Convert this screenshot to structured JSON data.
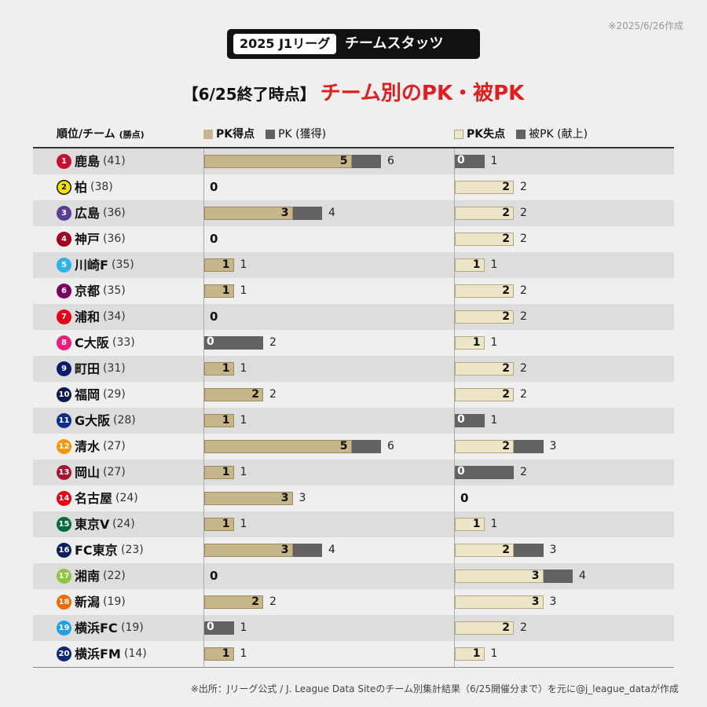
{
  "created": "※2025/6/26作成",
  "badge": {
    "year": "2025 J1リーグ",
    "title": "チームスタッツ"
  },
  "headline": {
    "prefix": "【6/25終了時点】",
    "main": "チーム別のPK・被PK"
  },
  "headers": {
    "team": "順位/チーム",
    "team_sub": "(勝点)",
    "pk_scored": "PK得点",
    "pk_won": "PK (獲得)",
    "pk_conceded": "PK失点",
    "pk_given": "被PK (献上)"
  },
  "colors": {
    "pk_scored": "#c7b68a",
    "pk_total": "#626262",
    "pk_conceded": "#ede5c8",
    "title_red": "#e01e1e"
  },
  "chart_data": {
    "type": "bar",
    "orientation": "horizontal",
    "categories": [
      "鹿島",
      "柏",
      "広島",
      "神戸",
      "川崎F",
      "京都",
      "浦和",
      "C大阪",
      "町田",
      "福岡",
      "G大阪",
      "清水",
      "岡山",
      "名古屋",
      "東京V",
      "FC東京",
      "湘南",
      "新潟",
      "横浜FC",
      "横浜FM"
    ],
    "panels": [
      {
        "series": [
          {
            "name": "PK得点",
            "values": [
              5,
              0,
              3,
              0,
              1,
              1,
              0,
              0,
              1,
              2,
              1,
              5,
              1,
              3,
              1,
              3,
              0,
              2,
              0,
              1
            ]
          },
          {
            "name": "PK (獲得)",
            "values": [
              6,
              0,
              4,
              0,
              1,
              1,
              0,
              2,
              1,
              2,
              1,
              6,
              1,
              3,
              1,
              4,
              0,
              2,
              1,
              1
            ]
          }
        ]
      },
      {
        "series": [
          {
            "name": "PK失点",
            "values": [
              0,
              2,
              2,
              2,
              1,
              2,
              2,
              1,
              2,
              2,
              0,
              2,
              0,
              0,
              1,
              2,
              3,
              3,
              2,
              1
            ]
          },
          {
            "name": "被PK (献上)",
            "values": [
              1,
              2,
              2,
              2,
              1,
              2,
              2,
              1,
              2,
              2,
              1,
              3,
              2,
              0,
              1,
              3,
              4,
              3,
              2,
              1
            ]
          }
        ]
      }
    ]
  },
  "teams": [
    {
      "rank": "1",
      "name": "鹿島",
      "points": "(41)",
      "color": "#c8102e"
    },
    {
      "rank": "2",
      "name": "柏",
      "points": "(38)",
      "color": "#f5e000",
      "text_color": "#111",
      "outline": true
    },
    {
      "rank": "3",
      "name": "広島",
      "points": "(36)",
      "color": "#5b3c94"
    },
    {
      "rank": "4",
      "name": "神戸",
      "points": "(36)",
      "color": "#a3001c"
    },
    {
      "rank": "5",
      "name": "川崎F",
      "points": "(35)",
      "color": "#2fb2e8"
    },
    {
      "rank": "6",
      "name": "京都",
      "points": "(35)",
      "color": "#7a0060"
    },
    {
      "rank": "7",
      "name": "浦和",
      "points": "(34)",
      "color": "#e60012"
    },
    {
      "rank": "8",
      "name": "C大阪",
      "points": "(33)",
      "color": "#ee1e78"
    },
    {
      "rank": "9",
      "name": "町田",
      "points": "(31)",
      "color": "#0b1e6e"
    },
    {
      "rank": "10",
      "name": "福岡",
      "points": "(29)",
      "color": "#0c1a4e"
    },
    {
      "rank": "11",
      "name": "G大阪",
      "points": "(28)",
      "color": "#0b2e8a"
    },
    {
      "rank": "12",
      "name": "清水",
      "points": "(27)",
      "color": "#f39800"
    },
    {
      "rank": "13",
      "name": "岡山",
      "points": "(27)",
      "color": "#a5132e"
    },
    {
      "rank": "14",
      "name": "名古屋",
      "points": "(24)",
      "color": "#e60012"
    },
    {
      "rank": "15",
      "name": "東京V",
      "points": "(24)",
      "color": "#006b3a"
    },
    {
      "rank": "16",
      "name": "FC東京",
      "points": "(23)",
      "color": "#0a1f5c"
    },
    {
      "rank": "17",
      "name": "湘南",
      "points": "(22)",
      "color": "#8cc63f"
    },
    {
      "rank": "18",
      "name": "新潟",
      "points": "(19)",
      "color": "#f26a00"
    },
    {
      "rank": "19",
      "name": "横浜FC",
      "points": "(19)",
      "color": "#1ea0e6"
    },
    {
      "rank": "20",
      "name": "横浜FM",
      "points": "(14)",
      "color": "#0a2a78"
    }
  ],
  "footer": "※出所：Jリーグ公式 / J. League Data Siteのチーム別集計結果（6/25開催分まで）を元に@j_league_dataが作成"
}
